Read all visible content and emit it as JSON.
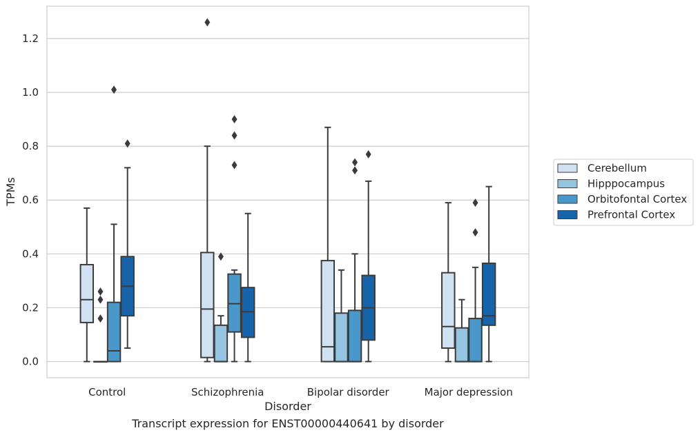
{
  "chart_data": {
    "type": "boxplot",
    "xlabel": "Disorder",
    "ylabel": "TPMs",
    "caption": "Transcript expression for ENST00000440641 by disorder",
    "categories": [
      "Control",
      "Schizophrenia",
      "Bipolar disorder",
      "Major depression"
    ],
    "ylim": [
      -0.06,
      1.32
    ],
    "yticks": [
      "0.0",
      "0.2",
      "0.4",
      "0.6",
      "0.8",
      "1.0",
      "1.2"
    ],
    "grid": true,
    "legend_position": "right",
    "series": [
      {
        "name": "Cerebellum",
        "color": "#d0e1f2",
        "boxes": [
          {
            "whislo": 0.0,
            "q1": 0.145,
            "med": 0.23,
            "q3": 0.36,
            "whishi": 0.57,
            "fliers": []
          },
          {
            "whislo": 0.0,
            "q1": 0.015,
            "med": 0.195,
            "q3": 0.405,
            "whishi": 0.8,
            "fliers": [
              1.26
            ]
          },
          {
            "whislo": 0.0,
            "q1": 0.0,
            "med": 0.055,
            "q3": 0.375,
            "whishi": 0.87,
            "fliers": []
          },
          {
            "whislo": 0.0,
            "q1": 0.05,
            "med": 0.13,
            "q3": 0.33,
            "whishi": 0.59,
            "fliers": []
          }
        ]
      },
      {
        "name": "Hipppocampus",
        "color": "#94c4df",
        "boxes": [
          {
            "whislo": 0.0,
            "q1": 0.0,
            "med": 0.0,
            "q3": 0.0,
            "whishi": 0.0,
            "fliers": [
              0.16,
              0.23,
              0.26
            ]
          },
          {
            "whislo": 0.0,
            "q1": 0.0,
            "med": 0.0,
            "q3": 0.135,
            "whishi": 0.17,
            "fliers": [
              0.39
            ]
          },
          {
            "whislo": 0.0,
            "q1": 0.0,
            "med": 0.0,
            "q3": 0.18,
            "whishi": 0.34,
            "fliers": []
          },
          {
            "whislo": 0.0,
            "q1": 0.0,
            "med": 0.0,
            "q3": 0.125,
            "whishi": 0.23,
            "fliers": []
          }
        ]
      },
      {
        "name": "Orbitofontal Cortex",
        "color": "#4a98c9",
        "boxes": [
          {
            "whislo": 0.0,
            "q1": 0.0,
            "med": 0.04,
            "q3": 0.22,
            "whishi": 0.51,
            "fliers": [
              1.01
            ]
          },
          {
            "whislo": 0.0,
            "q1": 0.11,
            "med": 0.215,
            "q3": 0.325,
            "whishi": 0.34,
            "fliers": [
              0.73,
              0.84,
              0.9
            ]
          },
          {
            "whislo": 0.0,
            "q1": 0.0,
            "med": 0.0,
            "q3": 0.19,
            "whishi": 0.4,
            "fliers": [
              0.71,
              0.74
            ]
          },
          {
            "whislo": 0.0,
            "q1": 0.0,
            "med": 0.0,
            "q3": 0.16,
            "whishi": 0.35,
            "fliers": [
              0.48,
              0.59
            ]
          }
        ]
      },
      {
        "name": "Prefrontal Cortex",
        "color": "#1764ab",
        "boxes": [
          {
            "whislo": 0.05,
            "q1": 0.17,
            "med": 0.28,
            "q3": 0.39,
            "whishi": 0.72,
            "fliers": [
              0.81
            ]
          },
          {
            "whislo": 0.0,
            "q1": 0.09,
            "med": 0.185,
            "q3": 0.275,
            "whishi": 0.55,
            "fliers": []
          },
          {
            "whislo": 0.0,
            "q1": 0.08,
            "med": 0.2,
            "q3": 0.32,
            "whishi": 0.67,
            "fliers": [
              0.77
            ]
          },
          {
            "whislo": 0.0,
            "q1": 0.135,
            "med": 0.17,
            "q3": 0.365,
            "whishi": 0.65,
            "fliers": []
          }
        ]
      }
    ]
  }
}
